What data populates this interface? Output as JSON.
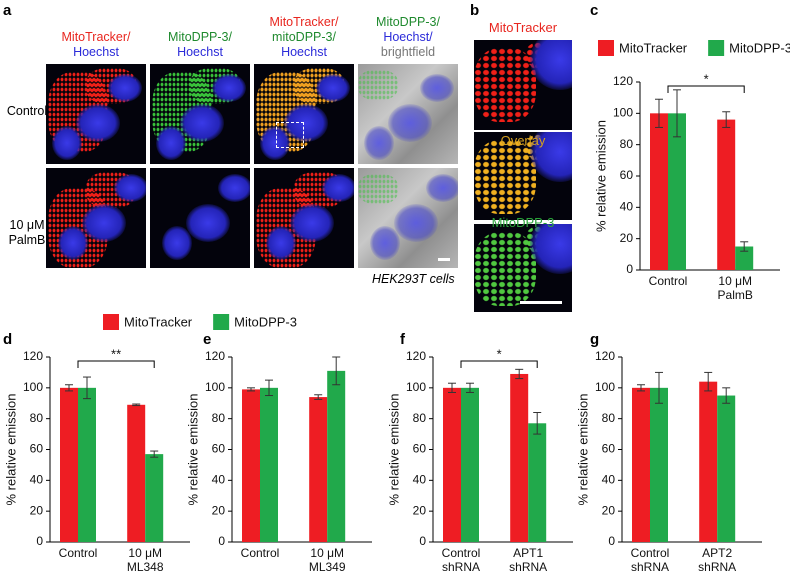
{
  "panel_labels": [
    "a",
    "b",
    "c",
    "d",
    "e",
    "f",
    "g"
  ],
  "figure_a": {
    "columns": [
      {
        "parts": [
          {
            "text": "MitoTracker/",
            "color": "#e8261f"
          },
          {
            "text": "Hoechst",
            "color": "#2b2bd9"
          }
        ]
      },
      {
        "parts": [
          {
            "text": "MitoDPP-3/",
            "color": "#1f8a2e"
          },
          {
            "text": "Hoechst",
            "color": "#2b2bd9"
          }
        ]
      },
      {
        "parts": [
          {
            "text": "MitoTracker/",
            "color": "#e8261f"
          },
          {
            "text": "mitoDPP-3/",
            "color": "#1f8a2e"
          },
          {
            "text": "Hoechst",
            "color": "#2b2bd9"
          }
        ]
      },
      {
        "parts": [
          {
            "text": "MitoDPP-3/",
            "color": "#1f8a2e"
          },
          {
            "text": "Hoechst/",
            "color": "#2b2bd9"
          },
          {
            "text": "brightfield",
            "color": "#777777"
          }
        ]
      }
    ],
    "rows": [
      "Control",
      "10 μM\nPalmB"
    ],
    "caption": "HEK293T cells"
  },
  "figure_b": {
    "labels": [
      {
        "text": "MitoTracker",
        "color": "#e8261f"
      },
      {
        "text": "Overlay",
        "color": "#d4a020"
      },
      {
        "text": "MitoDPP-3",
        "color": "#2aa33a"
      }
    ]
  },
  "chart_data": [
    {
      "type": "bar",
      "ylabel": "% relative emission",
      "categories": [
        "Control",
        "10 μM\nPalmB"
      ],
      "series": [
        {
          "name": "MitoTracker",
          "color": "#ee1d23",
          "values": [
            100,
            96
          ],
          "errors": [
            9,
            5
          ]
        },
        {
          "name": "MitoDPP-3",
          "color": "#21a94b",
          "values": [
            100,
            15
          ],
          "errors": [
            15,
            3
          ]
        }
      ],
      "ylim": [
        0,
        120
      ],
      "yticks": [
        0,
        20,
        40,
        60,
        80,
        100,
        120
      ],
      "legend": "top",
      "annotation": "*"
    },
    {
      "type": "bar",
      "ylabel": "% relative emission",
      "categories": [
        "Control",
        "10 μM\nML348"
      ],
      "series": [
        {
          "name": "MitoTracker",
          "color": "#ee1d23",
          "values": [
            100,
            89
          ],
          "errors": [
            2,
            0.5
          ]
        },
        {
          "name": "MitoDPP-3",
          "color": "#21a94b",
          "values": [
            100,
            57
          ],
          "errors": [
            7,
            2
          ]
        }
      ],
      "ylim": [
        0,
        120
      ],
      "yticks": [
        0,
        20,
        40,
        60,
        80,
        100,
        120
      ],
      "legend": "top",
      "annotation": "**"
    },
    {
      "type": "bar",
      "ylabel": "% relative emission",
      "categories": [
        "Control",
        "10 μM\nML349"
      ],
      "series": [
        {
          "color": "#ee1d23",
          "values": [
            99,
            94
          ],
          "errors": [
            1,
            1.5
          ]
        },
        {
          "color": "#21a94b",
          "values": [
            100,
            111
          ],
          "errors": [
            5,
            9
          ]
        }
      ],
      "ylim": [
        0,
        120
      ],
      "yticks": [
        0,
        20,
        40,
        60,
        80,
        100,
        120
      ]
    },
    {
      "type": "bar",
      "ylabel": "% relative emission",
      "categories": [
        "Control\nshRNA",
        "APT1\nshRNA"
      ],
      "series": [
        {
          "color": "#ee1d23",
          "values": [
            100,
            109
          ],
          "errors": [
            3,
            3
          ]
        },
        {
          "color": "#21a94b",
          "values": [
            100,
            77
          ],
          "errors": [
            3,
            7
          ]
        }
      ],
      "ylim": [
        0,
        120
      ],
      "yticks": [
        0,
        20,
        40,
        60,
        80,
        100,
        120
      ],
      "annotation": "*"
    },
    {
      "type": "bar",
      "ylabel": "% relative emission",
      "categories": [
        "Control\nshRNA",
        "APT2\nshRNA"
      ],
      "series": [
        {
          "color": "#ee1d23",
          "values": [
            100,
            104
          ],
          "errors": [
            2,
            6
          ]
        },
        {
          "color": "#21a94b",
          "values": [
            100,
            95
          ],
          "errors": [
            10,
            5
          ]
        }
      ],
      "ylim": [
        0,
        120
      ],
      "yticks": [
        0,
        20,
        40,
        60,
        80,
        100,
        120
      ]
    }
  ]
}
